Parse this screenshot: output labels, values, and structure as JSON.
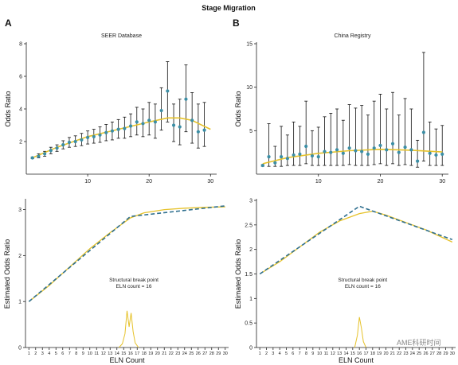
{
  "figure": {
    "title": "Stage Migration",
    "watermark": "AME科研时间"
  },
  "chart_data": [
    {
      "id": "top_left",
      "panel": "A",
      "type": "scatter",
      "subtitle": "SEER Database",
      "xlabel": "",
      "ylabel": "Odds Ratio",
      "xlim": [
        0,
        31
      ],
      "ylim": [
        0,
        8
      ],
      "xticks": [
        10,
        20,
        30
      ],
      "yticks": [
        2,
        4,
        6,
        8
      ],
      "points": [
        {
          "x": 1,
          "y": 1.0,
          "lo": 0.95,
          "hi": 1.05
        },
        {
          "x": 2,
          "y": 1.1,
          "lo": 1.0,
          "hi": 1.25
        },
        {
          "x": 3,
          "y": 1.25,
          "lo": 1.1,
          "hi": 1.4
        },
        {
          "x": 4,
          "y": 1.45,
          "lo": 1.25,
          "hi": 1.65
        },
        {
          "x": 5,
          "y": 1.6,
          "lo": 1.4,
          "hi": 1.8
        },
        {
          "x": 6,
          "y": 1.8,
          "lo": 1.55,
          "hi": 2.05
        },
        {
          "x": 7,
          "y": 1.95,
          "lo": 1.65,
          "hi": 2.25
        },
        {
          "x": 8,
          "y": 2.0,
          "lo": 1.7,
          "hi": 2.35
        },
        {
          "x": 9,
          "y": 2.1,
          "lo": 1.75,
          "hi": 2.5
        },
        {
          "x": 10,
          "y": 2.25,
          "lo": 1.85,
          "hi": 2.65
        },
        {
          "x": 11,
          "y": 2.3,
          "lo": 1.9,
          "hi": 2.75
        },
        {
          "x": 12,
          "y": 2.4,
          "lo": 1.95,
          "hi": 2.9
        },
        {
          "x": 13,
          "y": 2.55,
          "lo": 2.05,
          "hi": 3.05
        },
        {
          "x": 14,
          "y": 2.65,
          "lo": 2.1,
          "hi": 3.2
        },
        {
          "x": 15,
          "y": 2.75,
          "lo": 2.2,
          "hi": 3.35
        },
        {
          "x": 16,
          "y": 2.8,
          "lo": 2.2,
          "hi": 3.5
        },
        {
          "x": 17,
          "y": 2.95,
          "lo": 2.3,
          "hi": 3.7
        },
        {
          "x": 18,
          "y": 3.2,
          "lo": 2.4,
          "hi": 4.1
        },
        {
          "x": 19,
          "y": 3.1,
          "lo": 2.3,
          "hi": 4.0
        },
        {
          "x": 20,
          "y": 3.3,
          "lo": 2.4,
          "hi": 4.4
        },
        {
          "x": 21,
          "y": 3.2,
          "lo": 2.2,
          "hi": 4.3
        },
        {
          "x": 22,
          "y": 3.9,
          "lo": 2.7,
          "hi": 5.3
        },
        {
          "x": 23,
          "y": 5.1,
          "lo": 3.2,
          "hi": 6.9
        },
        {
          "x": 24,
          "y": 3.0,
          "lo": 2.0,
          "hi": 4.3
        },
        {
          "x": 25,
          "y": 2.9,
          "lo": 1.8,
          "hi": 4.6
        },
        {
          "x": 26,
          "y": 4.6,
          "lo": 2.6,
          "hi": 6.7
        },
        {
          "x": 27,
          "y": 3.3,
          "lo": 1.9,
          "hi": 5.0
        },
        {
          "x": 28,
          "y": 2.6,
          "lo": 1.6,
          "hi": 4.3
        },
        {
          "x": 29,
          "y": 2.7,
          "lo": 1.7,
          "hi": 4.4
        }
      ],
      "fit": [
        {
          "x": 1,
          "y": 1.0
        },
        {
          "x": 5,
          "y": 1.65
        },
        {
          "x": 10,
          "y": 2.3
        },
        {
          "x": 15,
          "y": 2.75
        },
        {
          "x": 20,
          "y": 3.2
        },
        {
          "x": 23,
          "y": 3.45
        },
        {
          "x": 25,
          "y": 3.45
        },
        {
          "x": 27,
          "y": 3.3
        },
        {
          "x": 30,
          "y": 2.75
        }
      ],
      "colors": {
        "points": "#3b8ea5",
        "fit": "#e6c22a",
        "error": "#111111"
      }
    },
    {
      "id": "top_right",
      "panel": "B",
      "type": "scatter",
      "subtitle": "China Registry",
      "xlabel": "",
      "ylabel": "Odds Ratio",
      "xlim": [
        0,
        31
      ],
      "ylim": [
        0,
        15
      ],
      "xticks": [
        10,
        20,
        30
      ],
      "yticks": [
        5,
        10,
        15
      ],
      "points": [
        {
          "x": 1,
          "y": 1.0,
          "lo": 0.9,
          "hi": 1.1
        },
        {
          "x": 2,
          "y": 2.0,
          "lo": 0.9,
          "hi": 5.8
        },
        {
          "x": 3,
          "y": 1.3,
          "lo": 0.9,
          "hi": 3.2
        },
        {
          "x": 4,
          "y": 2.0,
          "lo": 0.9,
          "hi": 5.5
        },
        {
          "x": 5,
          "y": 1.8,
          "lo": 1.0,
          "hi": 4.5
        },
        {
          "x": 6,
          "y": 2.2,
          "lo": 1.0,
          "hi": 6.0
        },
        {
          "x": 7,
          "y": 2.3,
          "lo": 1.0,
          "hi": 5.5
        },
        {
          "x": 8,
          "y": 3.2,
          "lo": 1.2,
          "hi": 8.4
        },
        {
          "x": 9,
          "y": 2.1,
          "lo": 1.0,
          "hi": 5.0
        },
        {
          "x": 10,
          "y": 2.0,
          "lo": 1.0,
          "hi": 5.4
        },
        {
          "x": 11,
          "y": 2.6,
          "lo": 1.0,
          "hi": 6.6
        },
        {
          "x": 12,
          "y": 2.5,
          "lo": 1.0,
          "hi": 7.0
        },
        {
          "x": 13,
          "y": 2.8,
          "lo": 1.0,
          "hi": 7.5
        },
        {
          "x": 14,
          "y": 2.4,
          "lo": 1.0,
          "hi": 6.2
        },
        {
          "x": 15,
          "y": 3.0,
          "lo": 1.1,
          "hi": 8.0
        },
        {
          "x": 16,
          "y": 2.7,
          "lo": 1.0,
          "hi": 7.6
        },
        {
          "x": 17,
          "y": 2.6,
          "lo": 1.0,
          "hi": 7.9
        },
        {
          "x": 18,
          "y": 2.3,
          "lo": 1.0,
          "hi": 6.8
        },
        {
          "x": 19,
          "y": 3.0,
          "lo": 1.1,
          "hi": 8.4
        },
        {
          "x": 20,
          "y": 3.3,
          "lo": 1.2,
          "hi": 9.2
        },
        {
          "x": 21,
          "y": 2.8,
          "lo": 1.0,
          "hi": 7.5
        },
        {
          "x": 22,
          "y": 3.5,
          "lo": 1.2,
          "hi": 9.4
        },
        {
          "x": 23,
          "y": 2.5,
          "lo": 1.0,
          "hi": 6.8
        },
        {
          "x": 24,
          "y": 3.1,
          "lo": 1.1,
          "hi": 8.7
        },
        {
          "x": 25,
          "y": 2.8,
          "lo": 1.0,
          "hi": 7.5
        },
        {
          "x": 26,
          "y": 1.5,
          "lo": 0.8,
          "hi": 3.9
        },
        {
          "x": 27,
          "y": 4.8,
          "lo": 1.5,
          "hi": 14.0
        },
        {
          "x": 28,
          "y": 2.4,
          "lo": 1.0,
          "hi": 6.0
        },
        {
          "x": 29,
          "y": 2.2,
          "lo": 1.0,
          "hi": 5.2
        },
        {
          "x": 30,
          "y": 2.3,
          "lo": 1.0,
          "hi": 5.6
        }
      ],
      "fit": [
        {
          "x": 1,
          "y": 1.2
        },
        {
          "x": 5,
          "y": 1.9
        },
        {
          "x": 10,
          "y": 2.4
        },
        {
          "x": 15,
          "y": 2.7
        },
        {
          "x": 20,
          "y": 2.85
        },
        {
          "x": 25,
          "y": 2.75
        },
        {
          "x": 30,
          "y": 2.55
        }
      ],
      "colors": {
        "points": "#3b8ea5",
        "fit": "#e6c22a",
        "error": "#111111"
      }
    },
    {
      "id": "bottom_left",
      "type": "line",
      "subtitle": "",
      "xlabel": "ELN Count",
      "ylabel": "Estimated Odds Ratio",
      "xlim": [
        0.5,
        30.5
      ],
      "ylim": [
        0,
        3.2
      ],
      "xticks": [
        1,
        2,
        3,
        4,
        5,
        6,
        7,
        8,
        9,
        10,
        11,
        12,
        13,
        14,
        15,
        16,
        17,
        18,
        19,
        20,
        21,
        22,
        23,
        24,
        25,
        26,
        27,
        28,
        29,
        30
      ],
      "yticks": [
        0,
        1,
        2,
        3
      ],
      "annotation": [
        "Structural break point",
        "ELN count = 16"
      ],
      "series": [
        {
          "style": "solid",
          "color": "#e6c22a",
          "points": [
            [
              1,
              1.0
            ],
            [
              4,
              1.35
            ],
            [
              7,
              1.75
            ],
            [
              10,
              2.15
            ],
            [
              13,
              2.5
            ],
            [
              16,
              2.82
            ],
            [
              18,
              2.93
            ],
            [
              21,
              3.0
            ],
            [
              24,
              3.03
            ],
            [
              27,
              3.05
            ],
            [
              30,
              3.06
            ]
          ]
        },
        {
          "style": "dashed",
          "color": "#2f6f8f",
          "points": [
            [
              1,
              1.0
            ],
            [
              16,
              2.85
            ],
            [
              30,
              3.08
            ]
          ]
        }
      ],
      "density": {
        "color": "#e6c22a",
        "points": [
          [
            14.3,
            0
          ],
          [
            14.8,
            0.08
          ],
          [
            15.2,
            0.3
          ],
          [
            15.5,
            0.8
          ],
          [
            15.8,
            0.45
          ],
          [
            16.1,
            0.75
          ],
          [
            16.4,
            0.35
          ],
          [
            16.7,
            0.1
          ],
          [
            17.2,
            0
          ]
        ]
      }
    },
    {
      "id": "bottom_right",
      "type": "line",
      "subtitle": "",
      "xlabel": "ELN Count",
      "ylabel": "Estimated Odds Ratio",
      "xlim": [
        0.5,
        30.5
      ],
      "ylim": [
        0,
        3.0
      ],
      "xticks": [
        1,
        2,
        3,
        4,
        5,
        6,
        7,
        8,
        9,
        10,
        11,
        12,
        13,
        14,
        15,
        16,
        17,
        18,
        19,
        20,
        21,
        22,
        23,
        24,
        25,
        26,
        27,
        28,
        29,
        30
      ],
      "yticks": [
        0,
        0.5,
        1.0,
        1.5,
        2.0,
        2.5,
        3.0
      ],
      "annotation": [
        "Structural break point",
        "ELN count = 16"
      ],
      "series": [
        {
          "style": "solid",
          "color": "#e6c22a",
          "points": [
            [
              1,
              1.5
            ],
            [
              4,
              1.75
            ],
            [
              7,
              2.05
            ],
            [
              10,
              2.35
            ],
            [
              13,
              2.58
            ],
            [
              16,
              2.73
            ],
            [
              18,
              2.78
            ],
            [
              20,
              2.7
            ],
            [
              23,
              2.55
            ],
            [
              26,
              2.4
            ],
            [
              30,
              2.15
            ]
          ]
        },
        {
          "style": "dashed",
          "color": "#2f6f8f",
          "points": [
            [
              1,
              1.5
            ],
            [
              16,
              2.88
            ],
            [
              30,
              2.2
            ]
          ]
        }
      ],
      "density": {
        "color": "#e6c22a",
        "points": [
          [
            15.3,
            0
          ],
          [
            15.7,
            0.25
          ],
          [
            16.0,
            0.62
          ],
          [
            16.3,
            0.4
          ],
          [
            16.6,
            0.12
          ],
          [
            17.0,
            0
          ]
        ]
      }
    }
  ]
}
